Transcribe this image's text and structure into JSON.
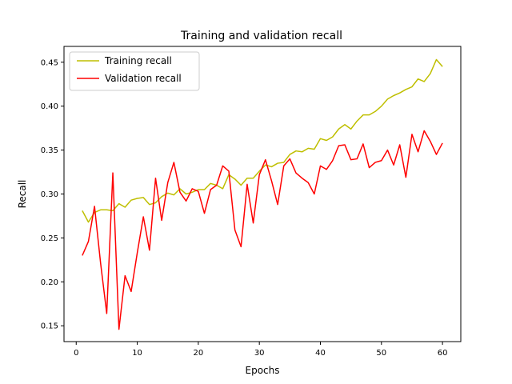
{
  "chart_data": {
    "type": "line",
    "title": "Training and validation recall",
    "xlabel": "Epochs",
    "ylabel": "Recall",
    "xlim": [
      -2,
      63
    ],
    "ylim": [
      0.132,
      0.468
    ],
    "xticks": [
      0,
      10,
      20,
      30,
      40,
      50,
      60
    ],
    "yticks": [
      0.15,
      0.2,
      0.25,
      0.3,
      0.35,
      0.4,
      0.45
    ],
    "ytick_labels": [
      "0.15",
      "0.20",
      "0.25",
      "0.30",
      "0.35",
      "0.40",
      "0.45"
    ],
    "grid": false,
    "legend": {
      "placement": "top-left"
    },
    "x": [
      1,
      2,
      3,
      4,
      5,
      6,
      7,
      8,
      9,
      10,
      11,
      12,
      13,
      14,
      15,
      16,
      17,
      18,
      19,
      20,
      21,
      22,
      23,
      24,
      25,
      26,
      27,
      28,
      29,
      30,
      31,
      32,
      33,
      34,
      35,
      36,
      37,
      38,
      39,
      40,
      41,
      42,
      43,
      44,
      45,
      46,
      47,
      48,
      49,
      50,
      51,
      52,
      53,
      54,
      55,
      56,
      57,
      58,
      59,
      60
    ],
    "series": [
      {
        "name": "Training recall",
        "color": "#bfbf00",
        "values": [
          0.281,
          0.268,
          0.279,
          0.282,
          0.282,
          0.281,
          0.289,
          0.285,
          0.293,
          0.295,
          0.296,
          0.288,
          0.29,
          0.297,
          0.301,
          0.299,
          0.306,
          0.3,
          0.302,
          0.305,
          0.305,
          0.312,
          0.31,
          0.306,
          0.322,
          0.317,
          0.31,
          0.318,
          0.318,
          0.326,
          0.333,
          0.331,
          0.335,
          0.336,
          0.345,
          0.349,
          0.348,
          0.352,
          0.351,
          0.363,
          0.361,
          0.365,
          0.374,
          0.379,
          0.374,
          0.383,
          0.39,
          0.39,
          0.394,
          0.4,
          0.408,
          0.412,
          0.415,
          0.419,
          0.422,
          0.431,
          0.428,
          0.437,
          0.453,
          0.445
        ]
      },
      {
        "name": "Validation recall",
        "color": "#ff0000",
        "values": [
          0.23,
          0.246,
          0.286,
          0.221,
          0.164,
          0.324,
          0.146,
          0.207,
          0.189,
          0.233,
          0.274,
          0.236,
          0.318,
          0.27,
          0.313,
          0.336,
          0.302,
          0.292,
          0.306,
          0.303,
          0.278,
          0.305,
          0.31,
          0.332,
          0.326,
          0.259,
          0.24,
          0.311,
          0.267,
          0.322,
          0.339,
          0.315,
          0.288,
          0.332,
          0.34,
          0.324,
          0.318,
          0.313,
          0.3,
          0.332,
          0.328,
          0.338,
          0.355,
          0.356,
          0.339,
          0.34,
          0.357,
          0.33,
          0.336,
          0.338,
          0.35,
          0.333,
          0.356,
          0.319,
          0.368,
          0.348,
          0.372,
          0.36,
          0.345,
          0.358
        ]
      }
    ]
  }
}
